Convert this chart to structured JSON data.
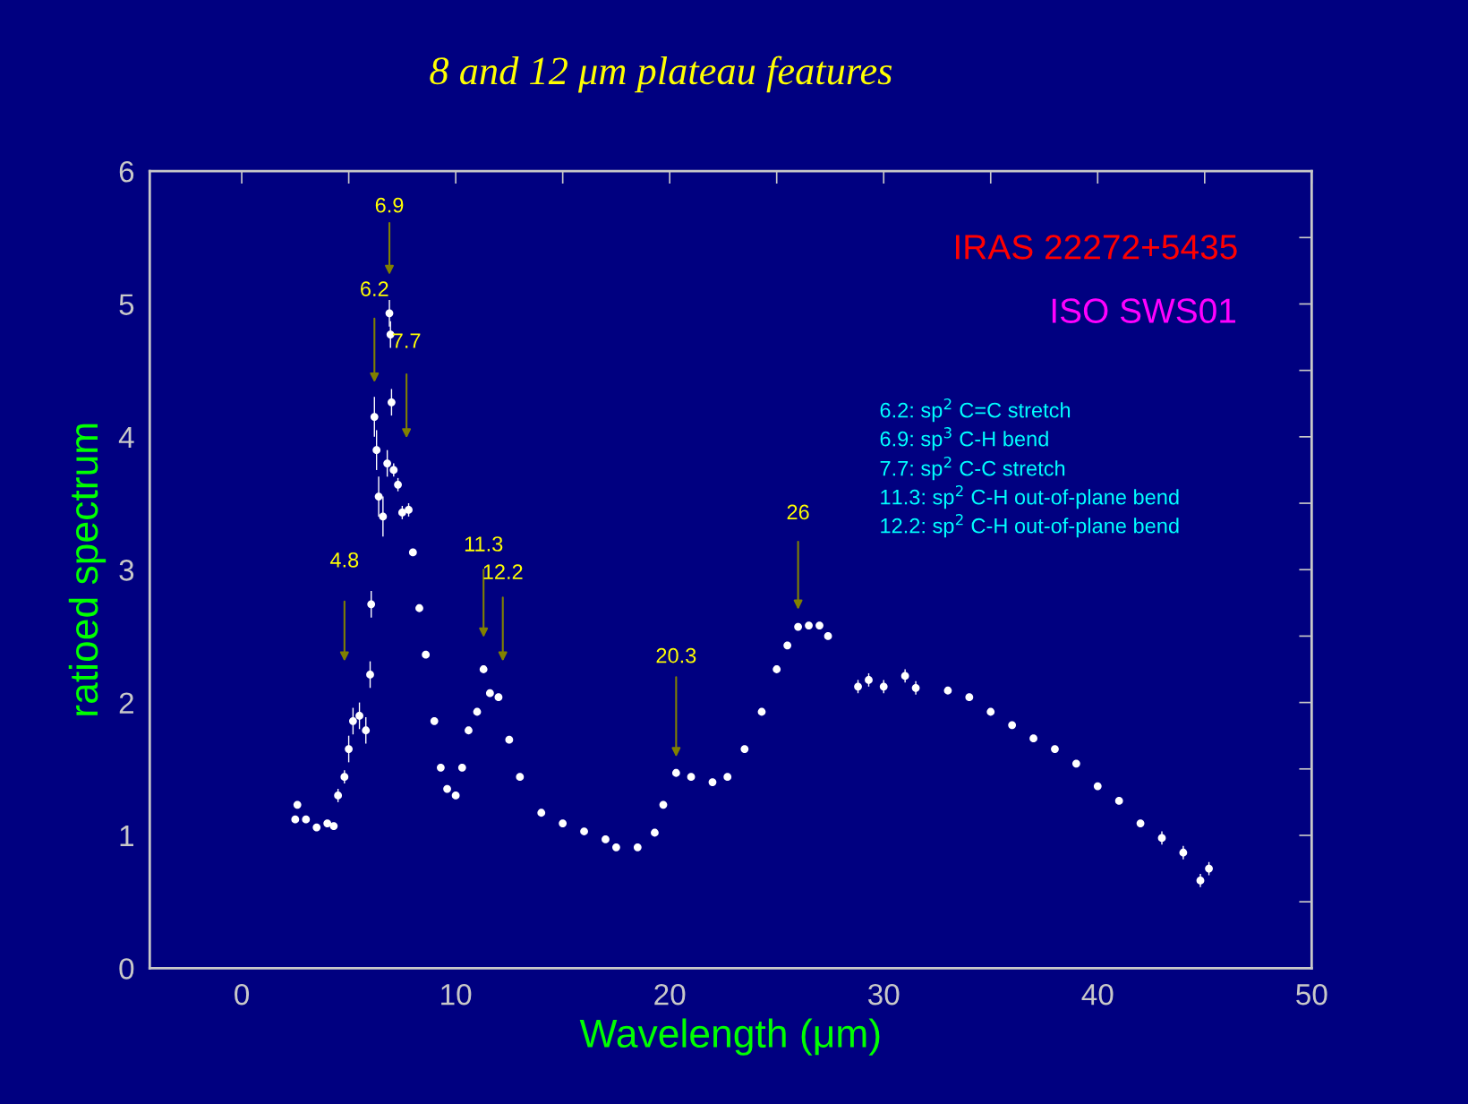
{
  "chart_data": {
    "type": "scatter",
    "title": "8 and 12 μm plateau features",
    "xlabel": "Wavelength (μm)",
    "ylabel": "ratioed spectrum",
    "xlim": [
      -4.3,
      50
    ],
    "ylim": [
      0,
      6
    ],
    "xticks": [
      0,
      {
        "value": 5,
        "label": null
      },
      10,
      {
        "value": 15,
        "label": null
      },
      20,
      {
        "value": 25,
        "label": null
      },
      30,
      {
        "value": 35,
        "label": null
      },
      40,
      {
        "value": 45,
        "label": null
      },
      50
    ],
    "yticks": [
      0,
      {
        "value": 0.5,
        "label": null
      },
      1,
      {
        "value": 1.5,
        "label": null
      },
      2,
      {
        "value": 2.5,
        "label": null
      },
      3,
      {
        "value": 3.5,
        "label": null
      },
      4,
      {
        "value": 4.5,
        "label": null
      },
      5,
      {
        "value": 5.5,
        "label": null
      },
      6
    ],
    "grid": false,
    "marker": "circle",
    "series": [
      {
        "color": "#ffffff",
        "x": [
          2.5,
          2.6,
          3.0,
          3.5,
          4.0,
          4.3,
          4.5,
          4.8,
          5.0,
          5.2,
          5.5,
          5.8,
          6.0,
          6.05,
          6.2,
          6.3,
          6.4,
          6.6,
          6.8,
          6.9,
          6.95,
          7.0,
          7.1,
          7.3,
          7.5,
          7.8,
          8.0,
          8.3,
          8.6,
          9.0,
          9.3,
          9.6,
          10.0,
          10.3,
          10.6,
          11.0,
          11.3,
          11.6,
          12.0,
          12.5,
          13.0,
          14.0,
          15.0,
          16.0,
          17.0,
          17.5,
          18.5,
          19.3,
          19.7,
          20.3,
          21.0,
          22.0,
          22.7,
          23.5,
          24.3,
          25.0,
          25.5,
          26.0,
          26.5,
          27.0,
          27.4,
          28.8,
          29.3,
          30.0,
          31.0,
          31.5,
          33.0,
          34.0,
          35.0,
          36.0,
          37.0,
          38.0,
          39.0,
          40.0,
          41.0,
          42.0,
          43.0,
          44.0,
          44.8,
          45.2
        ],
        "values": [
          1.12,
          1.23,
          1.12,
          1.06,
          1.09,
          1.07,
          1.3,
          1.44,
          1.65,
          1.86,
          1.9,
          1.79,
          2.21,
          2.74,
          4.15,
          3.9,
          3.55,
          3.4,
          3.8,
          4.93,
          4.77,
          4.26,
          3.75,
          3.64,
          3.43,
          3.45,
          3.13,
          2.71,
          2.36,
          1.86,
          1.51,
          1.35,
          1.3,
          1.51,
          1.79,
          1.93,
          2.25,
          2.07,
          2.04,
          1.72,
          1.44,
          1.17,
          1.09,
          1.03,
          0.97,
          0.91,
          0.91,
          1.02,
          1.23,
          1.47,
          1.44,
          1.4,
          1.44,
          1.65,
          1.93,
          2.25,
          2.43,
          2.57,
          2.58,
          2.58,
          2.5,
          2.12,
          2.17,
          2.12,
          2.2,
          2.11,
          2.09,
          2.04,
          1.93,
          1.83,
          1.73,
          1.65,
          1.54,
          1.37,
          1.26,
          1.09,
          0.98,
          0.87,
          0.66,
          0.75
        ],
        "errors": [
          null,
          null,
          null,
          null,
          null,
          null,
          0.05,
          0.05,
          0.1,
          0.1,
          0.1,
          0.1,
          0.1,
          0.1,
          0.15,
          0.15,
          0.15,
          0.15,
          0.1,
          0.1,
          0.1,
          0.1,
          0.05,
          0.05,
          0.05,
          0.05,
          null,
          null,
          null,
          null,
          null,
          null,
          null,
          null,
          null,
          null,
          null,
          null,
          null,
          null,
          null,
          null,
          null,
          null,
          null,
          null,
          null,
          null,
          null,
          null,
          null,
          null,
          null,
          null,
          null,
          null,
          null,
          null,
          null,
          null,
          null,
          0.05,
          0.05,
          0.05,
          0.05,
          0.05,
          null,
          null,
          null,
          null,
          null,
          null,
          null,
          null,
          null,
          null,
          0.05,
          0.05,
          0.05,
          0.05
        ]
      }
    ],
    "annotations": [
      "4.8",
      "6.2",
      "6.9",
      "7.7",
      "11.3",
      "12.2",
      "20.3",
      "26",
      "IRAS 22272+5435",
      "ISO SWS01",
      "6.2: sp$^{2}$ C=C stretch",
      "6.9: sp$^{3}$ C-H bend",
      "7.7: sp$^{2}$ C-C stretch",
      "11.3: sp$^{2}$ C-H out-of-plane bend",
      "12.2: sp$^{2}$ C-H out-of-plane bend"
    ]
  }
}
